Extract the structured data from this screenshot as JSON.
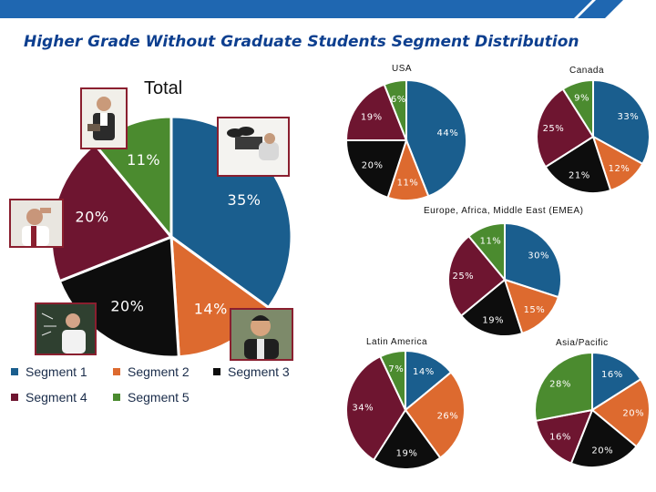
{
  "header": {
    "title": "Higher Grade Without Graduate Students Segment Distribution"
  },
  "colors": {
    "segment1": "#1a5e8e",
    "segment2": "#dd6a2f",
    "segment3": "#0d0d0d",
    "segment4": "#6e1530",
    "segment5": "#4b8b2f",
    "topbar": "#1f67b1",
    "photo_border": "#8a1f2f"
  },
  "legend": [
    {
      "label": "Segment 1",
      "color": "#1a5e8e"
    },
    {
      "label": "Segment 2",
      "color": "#dd6a2f"
    },
    {
      "label": "Segment 3",
      "color": "#0d0d0d"
    },
    {
      "label": "Segment 4",
      "color": "#6e1530"
    },
    {
      "label": "Segment 5",
      "color": "#4b8b2f"
    }
  ],
  "photos": [
    "person-with-clipboard-photo",
    "person-relaxing-photo",
    "person-thinking-photo",
    "teacher-at-board-photo",
    "smiling-person-photo"
  ],
  "chart_data": [
    {
      "type": "pie",
      "title": "Total",
      "categories": [
        "Segment 1",
        "Segment 2",
        "Segment 3",
        "Segment 4",
        "Segment 5"
      ],
      "values": [
        35,
        14,
        20,
        20,
        11
      ],
      "labels": [
        "35%",
        "14%",
        "20%",
        "20%",
        "11%"
      ]
    },
    {
      "type": "pie",
      "title": "USA",
      "categories": [
        "Segment 1",
        "Segment 2",
        "Segment 3",
        "Segment 4",
        "Segment 5"
      ],
      "values": [
        44,
        11,
        20,
        19,
        6
      ],
      "labels": [
        "44%",
        "11%",
        "20%",
        "19%",
        "6%"
      ]
    },
    {
      "type": "pie",
      "title": "Canada",
      "categories": [
        "Segment 1",
        "Segment 2",
        "Segment 3",
        "Segment 4",
        "Segment 5"
      ],
      "values": [
        33,
        12,
        21,
        25,
        9
      ],
      "labels": [
        "33%",
        "12%",
        "21%",
        "25%",
        "9%"
      ]
    },
    {
      "type": "pie",
      "title": "Europe, Africa, Middle East (EMEA)",
      "categories": [
        "Segment 1",
        "Segment 2",
        "Segment 3",
        "Segment 4",
        "Segment 5"
      ],
      "values": [
        30,
        15,
        19,
        25,
        11
      ],
      "labels": [
        "30%",
        "15%",
        "19%",
        "25%",
        "11%"
      ]
    },
    {
      "type": "pie",
      "title": "Latin America",
      "categories": [
        "Segment 1",
        "Segment 2",
        "Segment 3",
        "Segment 4",
        "Segment 5"
      ],
      "values": [
        14,
        26,
        19,
        34,
        7
      ],
      "labels": [
        "14%",
        "26%",
        "19%",
        "34%",
        "7%"
      ]
    },
    {
      "type": "pie",
      "title": "Asia/Pacific",
      "categories": [
        "Segment 1",
        "Segment 2",
        "Segment 3",
        "Segment 4",
        "Segment 5"
      ],
      "values": [
        16,
        20,
        20,
        16,
        28
      ],
      "labels": [
        "16%",
        "20%",
        "20%",
        "16%",
        "28%"
      ]
    }
  ]
}
